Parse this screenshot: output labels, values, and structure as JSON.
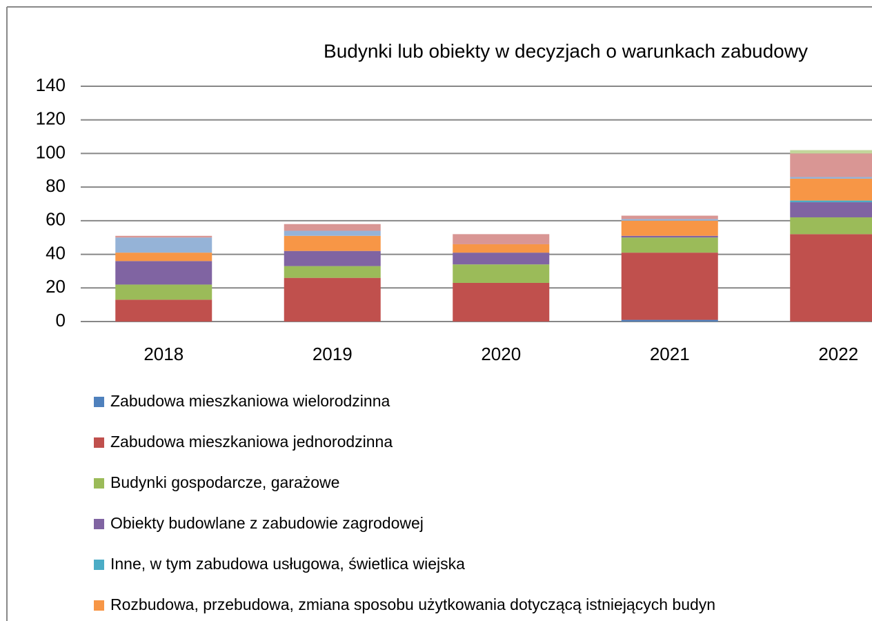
{
  "chart_data": {
    "type": "bar",
    "stacked": true,
    "title": "Budynki lub obiekty w decyzjach o warunkach zabudowy",
    "categories": [
      "2018",
      "2019",
      "2020",
      "2021",
      "2022"
    ],
    "series": [
      {
        "name": "Zabudowa mieszkaniowa wielorodzinna",
        "color": "#4f81bd",
        "values": [
          0,
          0,
          0,
          1,
          0
        ]
      },
      {
        "name": "Zabudowa mieszkaniowa jednorodzinna",
        "color": "#c0504d",
        "values": [
          13,
          26,
          23,
          40,
          52
        ]
      },
      {
        "name": "Budynki gospodarcze, garażowe",
        "color": "#9bbb59",
        "values": [
          9,
          7,
          11,
          9,
          10
        ]
      },
      {
        "name": "Obiekty budowlane z zabudowie zagrodowej",
        "color": "#8064a2",
        "values": [
          14,
          9,
          7,
          1,
          9
        ]
      },
      {
        "name": "Inne, w tym zabudowa usługowa, świetlica wiejska",
        "color": "#4bacc6",
        "values": [
          0,
          0,
          0,
          0,
          1
        ]
      },
      {
        "name": "Rozbudowa, przebudowa, zmiana sposobu użytkowania dotyczącą istniejących budyn",
        "color": "#f79646",
        "values": [
          5,
          9,
          5,
          9,
          13
        ]
      },
      {
        "color": "#95b3d7",
        "values": [
          9,
          3,
          0,
          1,
          1
        ]
      },
      {
        "color": "#d99694",
        "values": [
          1,
          4,
          6,
          2,
          14
        ]
      },
      {
        "color": "#c3d69b",
        "values": [
          0,
          0,
          0,
          0,
          2
        ]
      }
    ],
    "ylim": [
      0,
      140
    ],
    "yticks": [
      0,
      20,
      40,
      60,
      80,
      100,
      120,
      140
    ],
    "grid": true,
    "legend": "bottom"
  }
}
